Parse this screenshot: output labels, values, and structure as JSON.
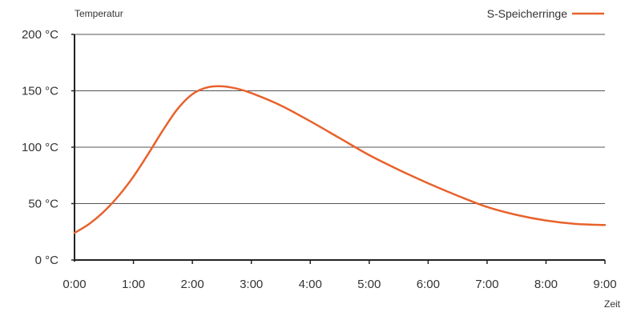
{
  "chart_data": {
    "type": "line",
    "ylabel": "Temperatur",
    "xlabel": "Zeit",
    "x_ticks": [
      "0:00",
      "1:00",
      "2:00",
      "3:00",
      "4:00",
      "5:00",
      "6:00",
      "7:00",
      "8:00",
      "9:00"
    ],
    "y_ticks": [
      "0 °C",
      "50 °C",
      "100 °C",
      "150 °C",
      "200 °C"
    ],
    "xlim": [
      0,
      9
    ],
    "ylim": [
      0,
      200
    ],
    "grid": "horizontal",
    "legend_position": "top-right",
    "series": [
      {
        "name": "S-Speicherringe",
        "color": "#e8622c",
        "x": [
          0,
          0.25,
          0.5,
          0.75,
          1.0,
          1.25,
          1.5,
          1.75,
          2.0,
          2.25,
          2.5,
          2.75,
          3.0,
          3.5,
          4.0,
          4.5,
          5.0,
          5.5,
          6.0,
          6.5,
          7.0,
          7.5,
          8.0,
          8.5,
          9.0
        ],
        "y": [
          24,
          32,
          43,
          57,
          74,
          94,
          115,
          134,
          147,
          153,
          154,
          152,
          148,
          137,
          123,
          108,
          93,
          80,
          68,
          57,
          47,
          40,
          35,
          32,
          31
        ]
      }
    ]
  }
}
